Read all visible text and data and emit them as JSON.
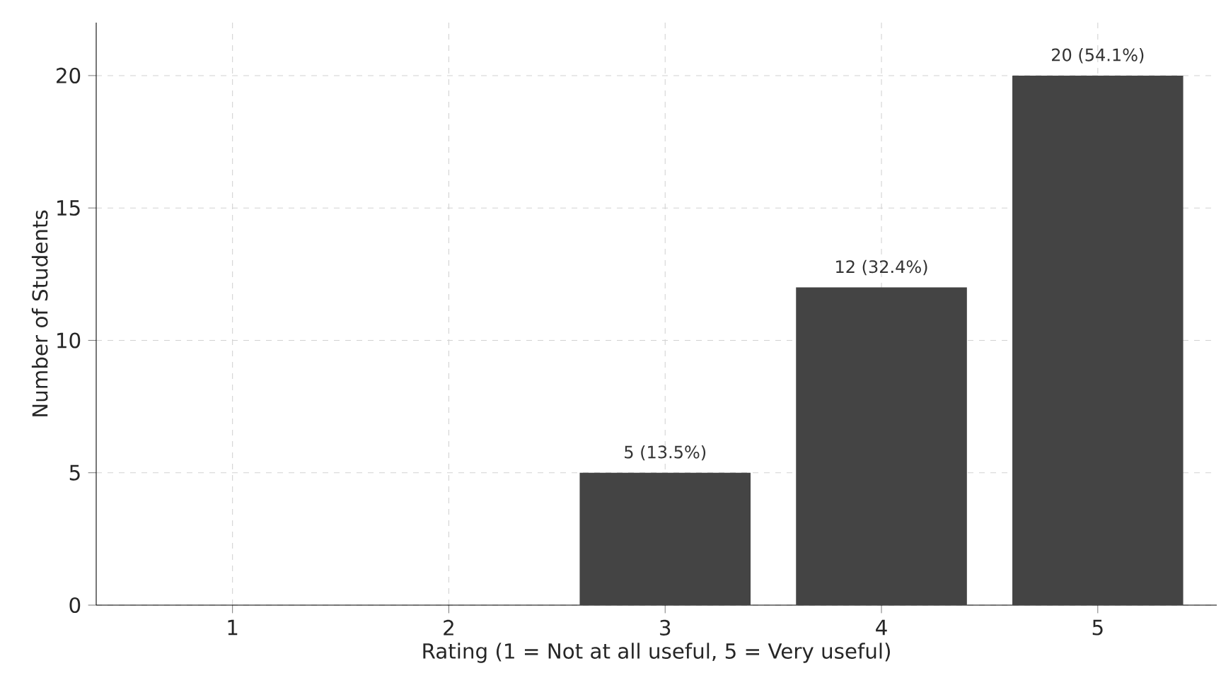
{
  "chart_data": {
    "type": "bar",
    "xlabel": "Rating (1 = Not at all useful, 5 = Very useful)",
    "ylabel": "Number of Students",
    "categories": [
      "1",
      "2",
      "3",
      "4",
      "5"
    ],
    "values": [
      0,
      0,
      5,
      12,
      20
    ],
    "value_labels": [
      null,
      null,
      "5 (13.5%)",
      "12 (32.4%)",
      "20 (54.1%)"
    ],
    "color": "#444444",
    "ylim": [
      0,
      22
    ],
    "yticks": [
      0,
      5,
      10,
      15,
      20
    ],
    "grid": true
  }
}
